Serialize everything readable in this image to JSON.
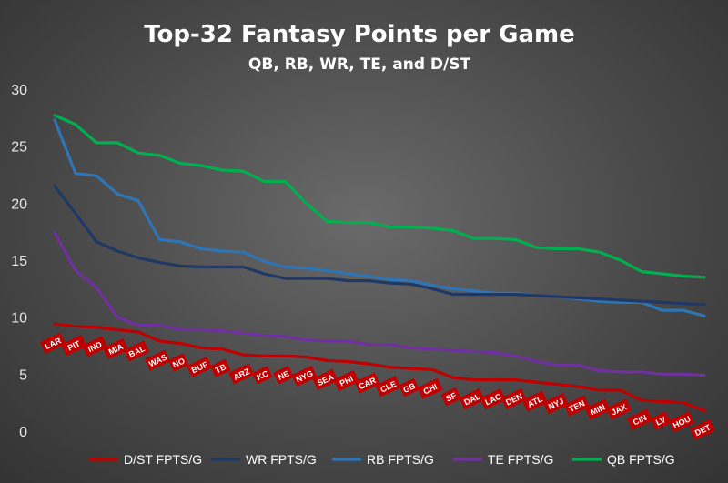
{
  "chart_data": {
    "type": "line",
    "title": "Top-32 Fantasy Points per Game",
    "subtitle": "QB, RB, WR, TE, and D/ST",
    "ylim": [
      0,
      30
    ],
    "yticks": [
      "0",
      "5",
      "10",
      "15",
      "20",
      "25",
      "30"
    ],
    "grid": false,
    "legend_position": "bottom",
    "series": [
      {
        "name": "D/ST FPTS/G",
        "color": "#c00000",
        "values": [
          9.4,
          9.2,
          9.1,
          8.9,
          8.7,
          7.9,
          7.7,
          7.3,
          7.2,
          6.7,
          6.6,
          6.6,
          6.5,
          6.2,
          6.1,
          5.9,
          5.6,
          5.5,
          5.4,
          4.7,
          4.5,
          4.5,
          4.5,
          4.3,
          4.1,
          3.9,
          3.6,
          3.6,
          2.7,
          2.6,
          2.5,
          1.8
        ]
      },
      {
        "name": "WR FPTS/G",
        "color": "#1f3864",
        "values": [
          21.5,
          19.1,
          16.6,
          15.8,
          15.2,
          14.8,
          14.5,
          14.4,
          14.4,
          14.4,
          13.8,
          13.4,
          13.4,
          13.4,
          13.2,
          13.2,
          13.0,
          12.9,
          12.5,
          12.0,
          12.0,
          12.0,
          12.0,
          11.9,
          11.8,
          11.7,
          11.6,
          11.5,
          11.4,
          11.3,
          11.2,
          11.1
        ]
      },
      {
        "name": "RB FPTS/G",
        "color": "#2e75b6",
        "values": [
          27.3,
          22.6,
          22.4,
          20.8,
          20.2,
          16.8,
          16.6,
          16.0,
          15.8,
          15.7,
          14.9,
          14.4,
          14.3,
          14.1,
          13.8,
          13.6,
          13.3,
          13.2,
          12.8,
          12.5,
          12.3,
          12.1,
          12.1,
          11.9,
          11.8,
          11.6,
          11.4,
          11.3,
          11.3,
          10.6,
          10.6,
          10.1
        ]
      },
      {
        "name": "TE FPTS/G",
        "color": "#7030a0",
        "values": [
          17.4,
          14.1,
          12.6,
          10.0,
          9.3,
          9.3,
          8.9,
          8.9,
          8.8,
          8.6,
          8.4,
          8.3,
          8.0,
          7.9,
          7.9,
          7.6,
          7.6,
          7.3,
          7.2,
          7.1,
          7.0,
          6.9,
          6.6,
          6.1,
          5.8,
          5.8,
          5.3,
          5.2,
          5.2,
          5.0,
          5.0,
          4.9
        ]
      },
      {
        "name": "QB FPTS/G",
        "color": "#00b050",
        "values": [
          27.7,
          26.9,
          25.3,
          25.3,
          24.4,
          24.2,
          23.5,
          23.3,
          22.9,
          22.8,
          21.9,
          21.9,
          20.0,
          18.4,
          18.3,
          18.3,
          17.9,
          17.9,
          17.8,
          17.6,
          16.9,
          16.9,
          16.8,
          16.1,
          16.0,
          16.0,
          15.7,
          15.0,
          14.0,
          13.8,
          13.6,
          13.5
        ]
      }
    ],
    "data_labels": [
      "LAR",
      "PIT",
      "IND",
      "MIA",
      "BAL",
      "WAS",
      "NO",
      "BUF",
      "TB",
      "ARZ",
      "KC",
      "NE",
      "NYG",
      "SEA",
      "PHI",
      "CAR",
      "CLE",
      "GB",
      "CHI",
      "SF",
      "DAL",
      "LAC",
      "DEN",
      "ATL",
      "NYJ",
      "TEN",
      "MIN",
      "JAX",
      "CIN",
      "LV",
      "HOU",
      "DET"
    ],
    "data_label_series": "D/ST FPTS/G"
  }
}
